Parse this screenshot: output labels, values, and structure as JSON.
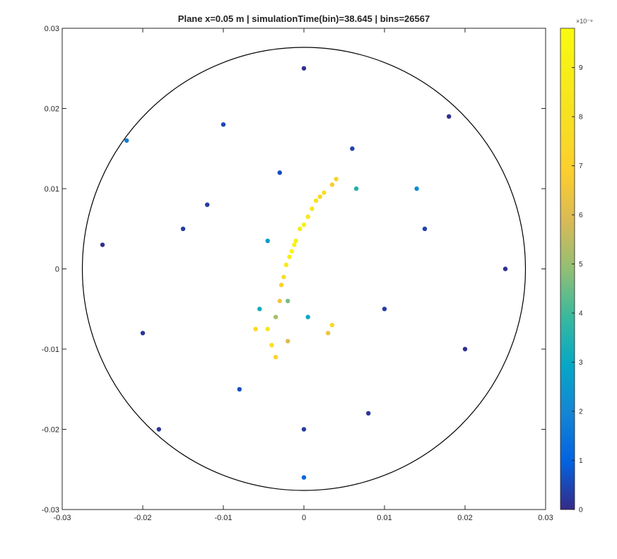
{
  "chart_data": {
    "type": "scatter",
    "title": "Plane x=0.05 m | simulationTime(bin)=38.645 | bins=26567",
    "xlabel": "",
    "ylabel": "",
    "xlim": [
      -0.03,
      0.03
    ],
    "ylim": [
      -0.03,
      0.03
    ],
    "x_ticks": [
      "-0.03",
      "-0.02",
      "-0.01",
      "0",
      "0.01",
      "0.02",
      "0.03"
    ],
    "y_ticks": [
      "0.03",
      "0.02",
      "0.01",
      "0",
      "-0.01",
      "-0.02",
      "-0.03"
    ],
    "x_tick_values": [
      -0.03,
      -0.02,
      -0.01,
      0,
      0.01,
      0.02,
      0.03
    ],
    "y_tick_values": [
      0.03,
      0.02,
      0.01,
      0,
      -0.01,
      -0.02,
      -0.03
    ],
    "circle": {
      "center": [
        0,
        0
      ],
      "radius": 0.0275
    },
    "colorbar": {
      "colormap": "parula",
      "range": [
        0,
        9.8
      ],
      "ticks": [
        "0",
        "1",
        "2",
        "3",
        "4",
        "5",
        "6",
        "7",
        "8",
        "9"
      ],
      "tick_values": [
        0,
        1,
        2,
        3,
        4,
        5,
        6,
        7,
        8,
        9
      ],
      "exponent_label": "×10⁻⁹"
    },
    "points": [
      [
        0.0005,
        0.0065,
        8.5
      ],
      [
        0.0015,
        0.0085,
        8.2
      ],
      [
        0.0025,
        0.0095,
        7.8
      ],
      [
        0.004,
        0.0112,
        7.2
      ],
      [
        -0.0005,
        0.005,
        8.8
      ],
      [
        -0.0012,
        0.003,
        9.2
      ],
      [
        -0.0018,
        0.0015,
        9.0
      ],
      [
        -0.0022,
        0.0005,
        8.6
      ],
      [
        -0.0025,
        -0.001,
        7.9
      ],
      [
        -0.0028,
        -0.002,
        7.0
      ],
      [
        -0.003,
        -0.004,
        6.5
      ],
      [
        -0.0035,
        -0.006,
        5.2
      ],
      [
        -0.002,
        -0.009,
        6.0
      ],
      [
        -0.0045,
        -0.0075,
        8.5
      ],
      [
        -0.006,
        -0.0075,
        7.6
      ],
      [
        -0.004,
        -0.0095,
        8.0
      ],
      [
        -0.0035,
        -0.011,
        7.2
      ],
      [
        0.0035,
        -0.007,
        7.5
      ],
      [
        0.003,
        -0.008,
        6.4
      ],
      [
        -0.001,
        0.0035,
        8.9
      ],
      [
        0.001,
        0.0075,
        8.4
      ],
      [
        0.0,
        0.0055,
        9.1
      ],
      [
        -0.0015,
        0.0022,
        9.4
      ],
      [
        0.002,
        0.009,
        7.4
      ],
      [
        0.0035,
        0.0105,
        6.8
      ],
      [
        0.0065,
        0.01,
        3.5
      ],
      [
        -0.0045,
        0.0035,
        2.6
      ],
      [
        -0.0055,
        -0.005,
        3.2
      ],
      [
        -0.002,
        -0.004,
        4.6
      ],
      [
        0.0005,
        -0.006,
        3.0
      ],
      [
        -0.015,
        0.005,
        0.3
      ],
      [
        0.015,
        0.005,
        0.4
      ],
      [
        -0.02,
        -0.008,
        0.2
      ],
      [
        0.02,
        -0.01,
        0.1
      ],
      [
        0.0,
        -0.02,
        0.3
      ],
      [
        0.0,
        -0.026,
        1.1
      ],
      [
        -0.022,
        0.016,
        1.8
      ],
      [
        0.014,
        0.01,
        2.2
      ],
      [
        -0.01,
        0.018,
        0.5
      ],
      [
        0.008,
        -0.018,
        0.2
      ],
      [
        -0.025,
        0.003,
        0.1
      ],
      [
        0.025,
        0.0,
        0.1
      ],
      [
        0.0,
        0.025,
        0.1
      ],
      [
        -0.018,
        -0.02,
        0.2
      ],
      [
        0.018,
        0.019,
        0.1
      ],
      [
        -0.008,
        -0.015,
        0.6
      ],
      [
        0.006,
        0.015,
        0.4
      ],
      [
        -0.012,
        0.008,
        0.3
      ],
      [
        0.01,
        -0.005,
        0.3
      ],
      [
        -0.003,
        0.012,
        0.6
      ]
    ]
  }
}
